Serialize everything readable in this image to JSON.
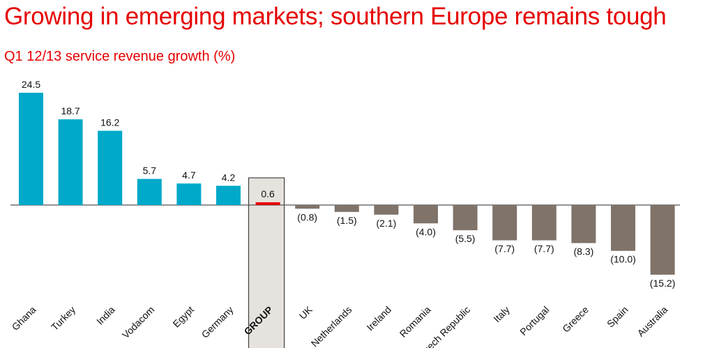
{
  "title": "Growing in emerging markets; southern Europe remains tough",
  "subtitle": "Q1 12/13 service revenue growth (%)",
  "colors": {
    "title": "#e60000",
    "positive": "#00a9c9",
    "negative": "#7f736a",
    "group": "#e60000",
    "group_box_fill": "#e6e2dd",
    "axis": "#555555"
  },
  "chart_data": {
    "type": "bar",
    "title": "Q1 12/13 service revenue growth (%)",
    "xlabel": "",
    "ylabel": "",
    "ylim": [
      -15.2,
      24.5
    ],
    "categories": [
      "Ghana",
      "Turkey",
      "India",
      "Vodacom",
      "Egypt",
      "Germany",
      "GROUP",
      "UK",
      "Netherlands",
      "Ireland",
      "Romania",
      "Czech Republic",
      "Italy",
      "Portugal",
      "Greece",
      "Spain",
      "Australia"
    ],
    "values": [
      24.5,
      18.7,
      16.2,
      5.7,
      4.7,
      4.2,
      0.6,
      -0.8,
      -1.5,
      -2.1,
      -4.0,
      -5.5,
      -7.7,
      -7.7,
      -8.3,
      -10.0,
      -15.2
    ],
    "value_labels": [
      "24.5",
      "18.7",
      "16.2",
      "5.7",
      "4.7",
      "4.2",
      "0.6",
      "(0.8)",
      "(1.5)",
      "(2.1)",
      "(4.0)",
      "(5.5)",
      "(7.7)",
      "(7.7)",
      "(8.3)",
      "(10.0)",
      "(15.2)"
    ],
    "highlight": "GROUP"
  }
}
